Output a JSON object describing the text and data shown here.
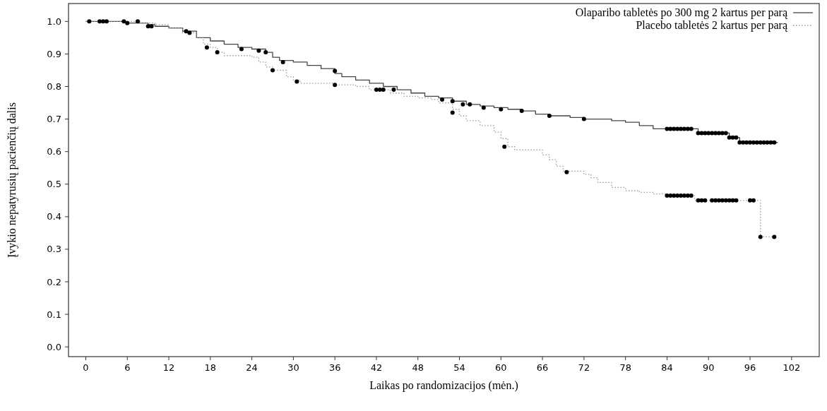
{
  "chart_data": {
    "type": "step",
    "xlabel": "Laikas po randomizacijos (mėn.)",
    "ylabel": "Įvykio nepatyrusių pacienčių dalis",
    "xlim": [
      -2.5,
      106
    ],
    "ylim": [
      -0.03,
      1.055
    ],
    "xticks": [
      0,
      6,
      12,
      18,
      24,
      30,
      36,
      42,
      48,
      54,
      60,
      66,
      72,
      78,
      84,
      90,
      96,
      102
    ],
    "yticks": [
      {
        "value": 0,
        "label": "0.0"
      },
      {
        "value": 0.1,
        "label": "0.1"
      },
      {
        "value": 0.2,
        "label": "0.2"
      },
      {
        "value": 0.3,
        "label": "0.3"
      },
      {
        "value": 0.4,
        "label": "0.4"
      },
      {
        "value": 0.5,
        "label": "0.5"
      },
      {
        "value": 0.6,
        "label": "0.6"
      },
      {
        "value": 0.7,
        "label": "0.7"
      },
      {
        "value": 0.8,
        "label": "0.8"
      },
      {
        "value": 0.9,
        "label": "0.9"
      },
      {
        "value": 1,
        "label": "1.0"
      }
    ],
    "grid": false,
    "legend": "top right",
    "series": [
      {
        "name": "Olaparibo tabletės po 300 mg 2 kartus per parą",
        "color": "#444444",
        "line_style": "solid",
        "marker": "none",
        "x": [
          0,
          6,
          9,
          10,
          12,
          14,
          16,
          18,
          20,
          22,
          24,
          26,
          27,
          28,
          30,
          32,
          34,
          36,
          37,
          39,
          41,
          43,
          45,
          47,
          49,
          51,
          53,
          55,
          57,
          59,
          61,
          63,
          65,
          67,
          70,
          72,
          76,
          78,
          80,
          82,
          88.5,
          93,
          94.5,
          100
        ],
        "values": [
          1,
          0.995,
          0.99,
          0.985,
          0.98,
          0.97,
          0.95,
          0.94,
          0.93,
          0.92,
          0.915,
          0.905,
          0.89,
          0.88,
          0.875,
          0.865,
          0.855,
          0.84,
          0.83,
          0.82,
          0.81,
          0.8,
          0.79,
          0.78,
          0.77,
          0.765,
          0.755,
          0.745,
          0.74,
          0.735,
          0.73,
          0.725,
          0.715,
          0.71,
          0.705,
          0.7,
          0.695,
          0.69,
          0.68,
          0.67,
          0.657,
          0.643,
          0.628,
          0.628
        ]
      },
      {
        "name": "Placebo tabletės 2 kartus per parą",
        "color": "#999999",
        "line_style": "dotted",
        "marker": "none",
        "x": [
          0,
          8,
          10,
          12,
          14,
          16,
          17,
          18,
          19,
          20,
          24,
          25,
          26,
          27,
          29,
          30,
          31,
          36,
          39,
          41,
          44,
          46,
          48,
          50,
          51,
          53,
          54,
          55,
          57,
          59,
          60,
          61,
          62,
          66,
          67,
          68,
          69,
          72,
          73,
          74,
          76,
          78,
          80,
          82,
          84,
          88,
          97.5,
          99.5
        ],
        "values": [
          1,
          0.995,
          0.99,
          0.98,
          0.965,
          0.95,
          0.93,
          0.92,
          0.905,
          0.895,
          0.89,
          0.875,
          0.86,
          0.85,
          0.83,
          0.82,
          0.81,
          0.805,
          0.8,
          0.79,
          0.78,
          0.77,
          0.765,
          0.76,
          0.75,
          0.73,
          0.71,
          0.695,
          0.68,
          0.66,
          0.64,
          0.615,
          0.605,
          0.59,
          0.575,
          0.555,
          0.54,
          0.53,
          0.52,
          0.505,
          0.49,
          0.48,
          0.475,
          0.47,
          0.465,
          0.45,
          0.338,
          0.338
        ]
      },
      {
        "type": "scatter",
        "color": "#000000",
        "marker": "circle",
        "x": [
          0.5,
          2,
          2.5,
          3,
          5.5,
          6,
          7.5,
          9,
          9.5,
          14.5,
          22.5,
          25,
          26,
          28.5,
          36,
          42,
          43,
          44.5,
          51.5,
          53,
          54.5,
          55.5,
          57.5,
          60,
          63,
          67,
          72,
          84,
          84.5,
          85,
          85.5,
          86,
          86.5,
          87,
          87.5,
          88.5,
          89,
          89.5,
          90,
          90.5,
          91,
          91.5,
          92,
          92.5,
          93,
          93.5,
          94,
          94.5,
          95,
          95.5,
          96,
          96.5,
          97,
          97.5,
          98,
          98.5,
          99,
          99.5
        ],
        "values": [
          1,
          1,
          1,
          1,
          1,
          0.995,
          1,
          0.985,
          0.985,
          0.97,
          0.915,
          0.91,
          0.905,
          0.875,
          0.848,
          0.79,
          0.79,
          0.79,
          0.76,
          0.755,
          0.745,
          0.745,
          0.735,
          0.73,
          0.725,
          0.71,
          0.7,
          0.67,
          0.67,
          0.67,
          0.67,
          0.67,
          0.67,
          0.67,
          0.67,
          0.657,
          0.657,
          0.657,
          0.657,
          0.657,
          0.657,
          0.657,
          0.657,
          0.657,
          0.643,
          0.643,
          0.643,
          0.628,
          0.628,
          0.628,
          0.628,
          0.628,
          0.628,
          0.628,
          0.628,
          0.628,
          0.628,
          0.628
        ]
      },
      {
        "type": "scatter",
        "color": "#000000",
        "marker": "circle",
        "x": [
          15,
          17.5,
          19,
          27,
          30.5,
          36,
          42.5,
          53,
          60.5,
          69.5,
          84,
          84.5,
          85,
          85.5,
          86,
          86.5,
          87,
          87.5,
          88.5,
          89,
          89.5,
          90.5,
          91,
          91.5,
          92,
          92.5,
          93,
          93.5,
          94,
          96,
          96.5,
          97.5,
          99.5
        ],
        "values": [
          0.965,
          0.92,
          0.905,
          0.85,
          0.815,
          0.805,
          0.79,
          0.72,
          0.615,
          0.537,
          0.465,
          0.465,
          0.465,
          0.465,
          0.465,
          0.465,
          0.465,
          0.465,
          0.45,
          0.45,
          0.45,
          0.45,
          0.45,
          0.45,
          0.45,
          0.45,
          0.45,
          0.45,
          0.45,
          0.45,
          0.45,
          0.338,
          0.338
        ]
      }
    ]
  }
}
